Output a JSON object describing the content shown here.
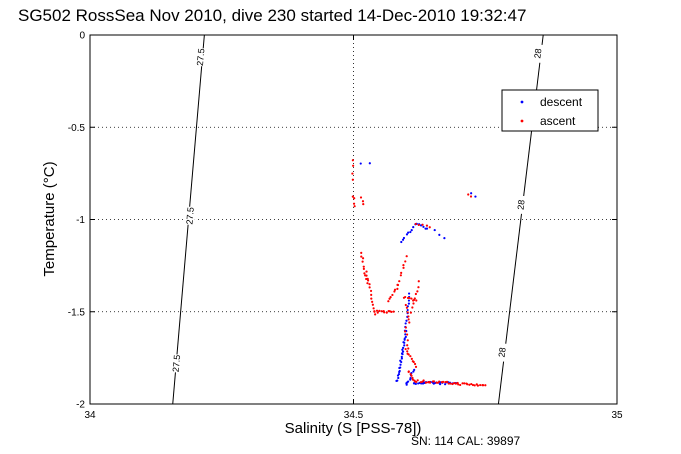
{
  "chart_data": {
    "type": "scatter",
    "title": "SG502 RossSea Nov 2010, dive 230 started 14-Dec-2010 19:32:47",
    "xlabel": "Salinity (S [PSS-78])",
    "ylabel": "Temperature (°C)",
    "xlim": [
      34,
      35
    ],
    "ylim": [
      -2,
      0
    ],
    "x_ticks": [
      34,
      34.5,
      35
    ],
    "x_tick_labels": [
      "34",
      "34.5",
      "35"
    ],
    "y_ticks": [
      0,
      -0.5,
      -1,
      -1.5,
      -2
    ],
    "y_tick_labels": [
      "0",
      "-0.5",
      "-1",
      "-1.5",
      "-2"
    ],
    "grid": true,
    "legend": {
      "placement": "top-right"
    },
    "footer": "SN: 114  CAL: 39897",
    "contours": [
      {
        "label": "27.5",
        "points": [
          [
            34.157,
            -2
          ],
          [
            34.217,
            0
          ]
        ],
        "label_positions": [
          [
            34.21,
            -0.12
          ],
          [
            34.19,
            -0.98
          ],
          [
            34.164,
            -1.78
          ]
        ]
      },
      {
        "label": "28",
        "points": [
          [
            34.775,
            -2
          ],
          [
            34.86,
            0
          ]
        ],
        "label_positions": [
          [
            34.85,
            -0.1
          ],
          [
            34.818,
            -0.92
          ],
          [
            34.782,
            -1.72
          ]
        ]
      }
    ],
    "series": [
      {
        "name": "descent",
        "color": "#0000ff",
        "segments": [
          {
            "s0": 34.583,
            "s1": 34.6,
            "t0": -1.88,
            "t1": -1.6,
            "n": 28
          },
          {
            "s0": 34.598,
            "s1": 34.606,
            "t0": -1.6,
            "t1": -1.4,
            "n": 12
          },
          {
            "s0": 34.6,
            "s1": 34.614,
            "t0": -1.9,
            "t1": -1.82,
            "n": 10
          },
          {
            "s0": 34.614,
            "s1": 34.695,
            "t0": -1.885,
            "t1": -1.888,
            "n": 30
          },
          {
            "s0": 34.59,
            "s1": 34.62,
            "t0": -1.12,
            "t1": -1.02,
            "n": 10
          },
          {
            "s0": 34.62,
            "s1": 34.64,
            "t0": -1.02,
            "t1": -1.05,
            "n": 6
          },
          {
            "s0": 34.655,
            "s1": 34.672,
            "t0": -1.06,
            "t1": -1.1,
            "n": 3
          },
          {
            "s0": 34.515,
            "s1": 34.53,
            "t0": -0.7,
            "t1": -0.7,
            "n": 2
          },
          {
            "s0": 34.722,
            "s1": 34.73,
            "t0": -0.86,
            "t1": -0.87,
            "n": 2
          }
        ]
      },
      {
        "name": "ascent",
        "color": "#ff0000",
        "segments": [
          {
            "s0": 34.498,
            "s1": 34.5,
            "t0": -0.68,
            "t1": -0.78,
            "n": 4
          },
          {
            "s0": 34.5,
            "s1": 34.503,
            "t0": -0.87,
            "t1": -0.93,
            "n": 4
          },
          {
            "s0": 34.515,
            "s1": 34.518,
            "t0": -0.88,
            "t1": -0.92,
            "n": 3
          },
          {
            "s0": 34.515,
            "s1": 34.525,
            "t0": -1.18,
            "t1": -1.34,
            "n": 10
          },
          {
            "s0": 34.525,
            "s1": 34.54,
            "t0": -1.28,
            "t1": -1.52,
            "n": 14
          },
          {
            "s0": 34.54,
            "s1": 34.575,
            "t0": -1.5,
            "t1": -1.5,
            "n": 12
          },
          {
            "s0": 34.565,
            "s1": 34.585,
            "t0": -1.44,
            "t1": -1.36,
            "n": 8
          },
          {
            "s0": 34.585,
            "s1": 34.6,
            "t0": -1.35,
            "t1": -1.2,
            "n": 8
          },
          {
            "s0": 34.595,
            "s1": 34.62,
            "t0": -1.42,
            "t1": -1.44,
            "n": 8
          },
          {
            "s0": 34.6,
            "s1": 34.605,
            "t0": -1.46,
            "t1": -1.56,
            "n": 6
          },
          {
            "s0": 34.608,
            "s1": 34.625,
            "t0": -1.5,
            "t1": -1.34,
            "n": 8
          },
          {
            "s0": 34.598,
            "s1": 34.604,
            "t0": -1.58,
            "t1": -1.7,
            "n": 6
          },
          {
            "s0": 34.6,
            "s1": 34.618,
            "t0": -1.7,
            "t1": -1.8,
            "n": 10
          },
          {
            "s0": 34.604,
            "s1": 34.618,
            "t0": -1.82,
            "t1": -1.88,
            "n": 8
          },
          {
            "s0": 34.62,
            "s1": 34.75,
            "t0": -1.875,
            "t1": -1.9,
            "n": 40
          },
          {
            "s0": 34.618,
            "s1": 34.645,
            "t0": -1.02,
            "t1": -1.04,
            "n": 5
          },
          {
            "s0": 34.718,
            "s1": 34.724,
            "t0": -0.86,
            "t1": -0.87,
            "n": 2
          }
        ]
      }
    ]
  }
}
